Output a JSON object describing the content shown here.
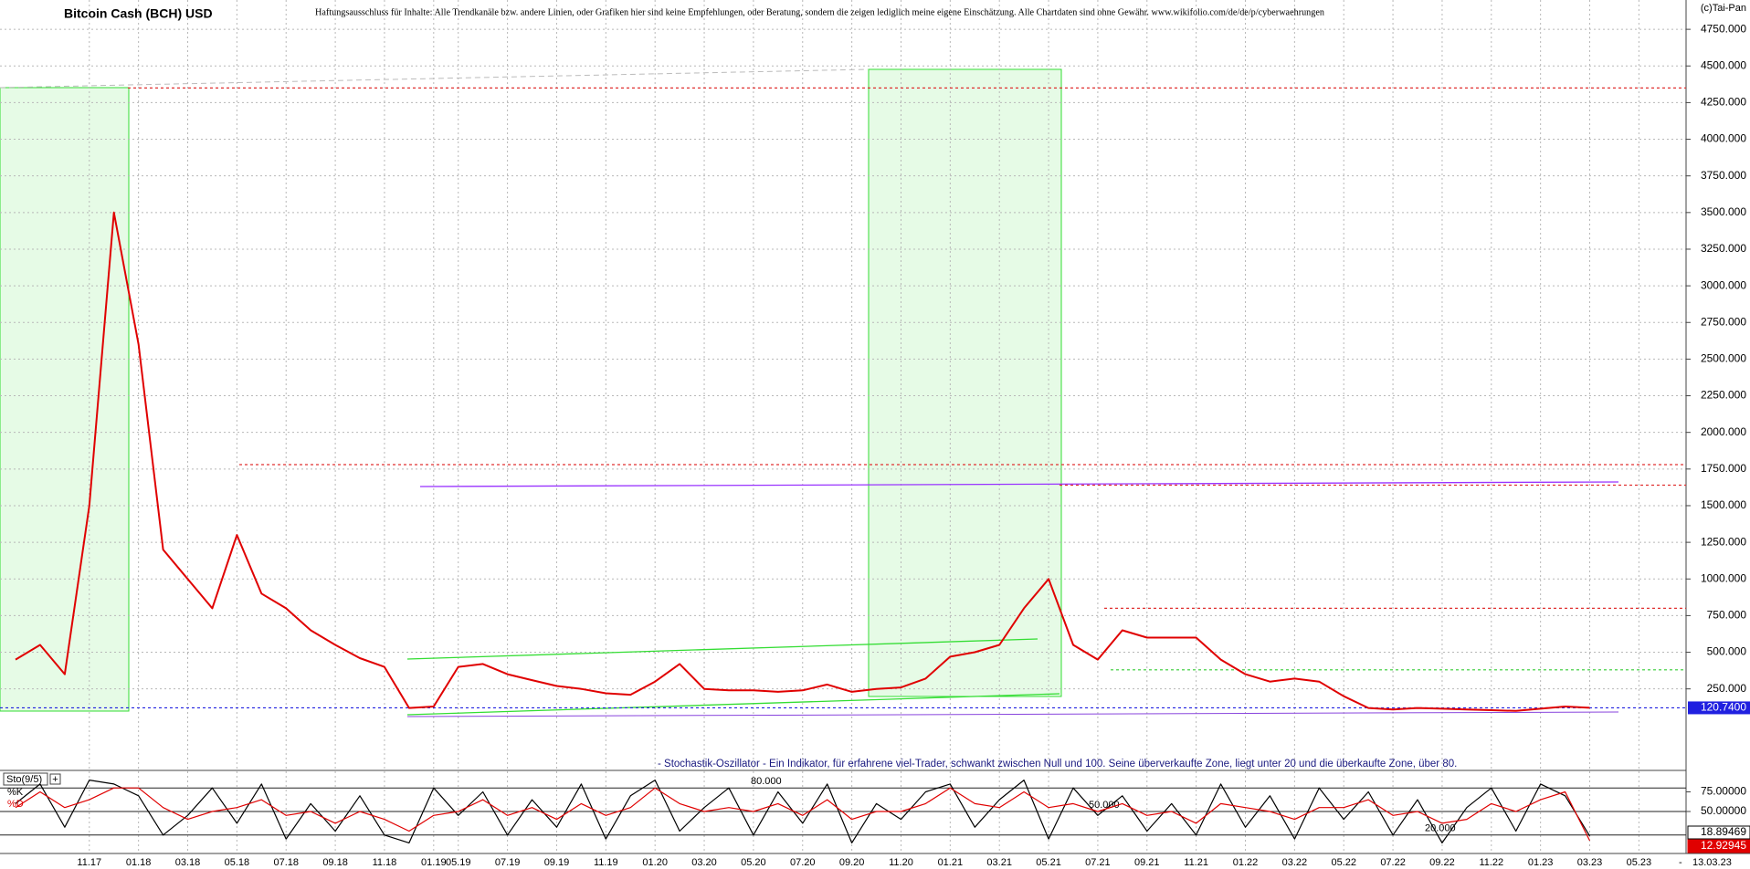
{
  "chart_data": [
    {
      "type": "line",
      "title": "Bitcoin Cash (BCH) USD",
      "subtitle": "Haftungsausschluss für Inhalte: Alle Trendkanäle bzw. andere Linien, oder Grafiken hier sind keine Empfehlungen, oder Beratung, sondern die zeigen lediglich meine eigene Einschätzung. Alle Chartdaten sind ohne Gewähr.  www.wikifolio.com/de/de/p/cyberwaehrungen",
      "watermark": "(c)Tai-Pan",
      "categories": [
        null,
        null,
        null,
        "11.17",
        null,
        "01.18",
        null,
        "03.18",
        null,
        "05.18",
        null,
        "07.18",
        null,
        "09.18",
        null,
        "11.18",
        null,
        "01.19",
        "05.19",
        null,
        "07.19",
        null,
        "09.19",
        null,
        "11.19",
        null,
        "01.20",
        null,
        "03.20",
        null,
        "05.20",
        null,
        "07.20",
        null,
        "09.20",
        null,
        "11.20",
        null,
        "01.21",
        null,
        "03.21",
        null,
        "05.21",
        null,
        "07.21",
        null,
        "09.21",
        null,
        "11.21",
        null,
        "01.22",
        null,
        "03.22",
        null,
        "05.22",
        null,
        "07.22",
        null,
        "09.22",
        null,
        "11.22",
        null,
        "01.23",
        null,
        "03.23",
        null,
        "05.23"
      ],
      "values": [
        450,
        550,
        350,
        1500,
        3500,
        2600,
        1200,
        1000,
        800,
        1300,
        900,
        800,
        650,
        550,
        460,
        400,
        120,
        130,
        400,
        420,
        350,
        310,
        270,
        250,
        220,
        210,
        300,
        420,
        250,
        240,
        240,
        230,
        240,
        280,
        230,
        250,
        260,
        320,
        470,
        500,
        550,
        800,
        1000,
        550,
        450,
        650,
        600,
        600,
        600,
        450,
        350,
        300,
        320,
        300,
        200,
        120,
        110,
        120,
        115,
        110,
        105,
        100,
        115,
        130,
        120.74,
        null,
        null
      ],
      "color": "#e00000",
      "ylim": [
        -300,
        4950
      ],
      "yticks": [
        {
          "value": 250,
          "label": "250.000"
        },
        {
          "value": 500,
          "label": "500.000"
        },
        {
          "value": 750,
          "label": "750.000"
        },
        {
          "value": 1000,
          "label": "1000.000"
        },
        {
          "value": 1250,
          "label": "1250.000"
        },
        {
          "value": 1500,
          "label": "1500.000"
        },
        {
          "value": 1750,
          "label": "1750.000"
        },
        {
          "value": 2000,
          "label": "2000.000"
        },
        {
          "value": 2250,
          "label": "2250.000"
        },
        {
          "value": 2500,
          "label": "2500.000"
        },
        {
          "value": 2750,
          "label": "2750.000"
        },
        {
          "value": 3000,
          "label": "3000.000"
        },
        {
          "value": 3250,
          "label": "3250.000"
        },
        {
          "value": 3500,
          "label": "3500.000"
        },
        {
          "value": 3750,
          "label": "3750.000"
        },
        {
          "value": 4000,
          "label": "4000.000"
        },
        {
          "value": 4250,
          "label": "4250.000"
        },
        {
          "value": 4500,
          "label": "4500.000"
        },
        {
          "value": 4750,
          "label": "4750.000"
        }
      ],
      "grid": true,
      "levels": [
        {
          "value": 4350,
          "color": "#e03030"
        },
        {
          "value": 1780,
          "color": "#e03030"
        },
        {
          "value": 1640,
          "color": "#e03030"
        },
        {
          "value": 800,
          "color": "#e03030"
        },
        {
          "value": 380,
          "color": "#33cc33"
        },
        {
          "value": 120.74,
          "label": "120.7400",
          "color": "#2020e0"
        }
      ],
      "last_date": "13.03.23",
      "end_mark": "-"
    },
    {
      "type": "line",
      "title": "Sto(9/5)",
      "subtitle": "- Stochastik-Oszillator - Ein Indikator, für erfahrene viel-Trader, schwankt zwischen Null und 100. Seine überverkaufte Zone, liegt unter 20 und die überkaufte Zone, über 80.",
      "series": [
        {
          "name": "%K",
          "color": "#000000",
          "values": [
            60,
            85,
            30,
            90,
            85,
            70,
            20,
            45,
            80,
            35,
            85,
            15,
            60,
            25,
            70,
            20,
            10,
            80,
            45,
            75,
            20,
            65,
            30,
            85,
            15,
            70,
            90,
            25,
            55,
            80,
            20,
            75,
            35,
            85,
            10,
            60,
            40,
            75,
            85,
            30,
            65,
            90,
            15,
            80,
            45,
            70,
            25,
            60,
            20,
            85,
            30,
            70,
            15,
            80,
            40,
            75,
            20,
            65,
            10,
            55,
            80,
            25,
            85,
            70,
            18.89469,
            null,
            null
          ]
        },
        {
          "name": "%D",
          "color": "#e00000",
          "values": [
            55,
            75,
            55,
            65,
            80,
            80,
            55,
            40,
            50,
            55,
            65,
            45,
            50,
            35,
            50,
            40,
            25,
            45,
            50,
            65,
            45,
            55,
            40,
            60,
            45,
            55,
            80,
            60,
            50,
            55,
            50,
            60,
            45,
            65,
            40,
            50,
            50,
            60,
            80,
            60,
            55,
            75,
            55,
            60,
            50,
            60,
            45,
            50,
            35,
            60,
            55,
            50,
            40,
            55,
            55,
            65,
            45,
            50,
            35,
            40,
            60,
            50,
            65,
            75,
            12.92945,
            null,
            null
          ]
        }
      ],
      "ylim": [
        0,
        100
      ],
      "yticks": [
        {
          "value": 75,
          "label": "75.00000"
        },
        {
          "value": 50,
          "label": "50.00000"
        }
      ],
      "annotations": [
        {
          "value": 80,
          "label": "80.000"
        },
        {
          "value": 50,
          "label": "50.000"
        },
        {
          "value": 20,
          "label": "20.000"
        }
      ]
    }
  ]
}
